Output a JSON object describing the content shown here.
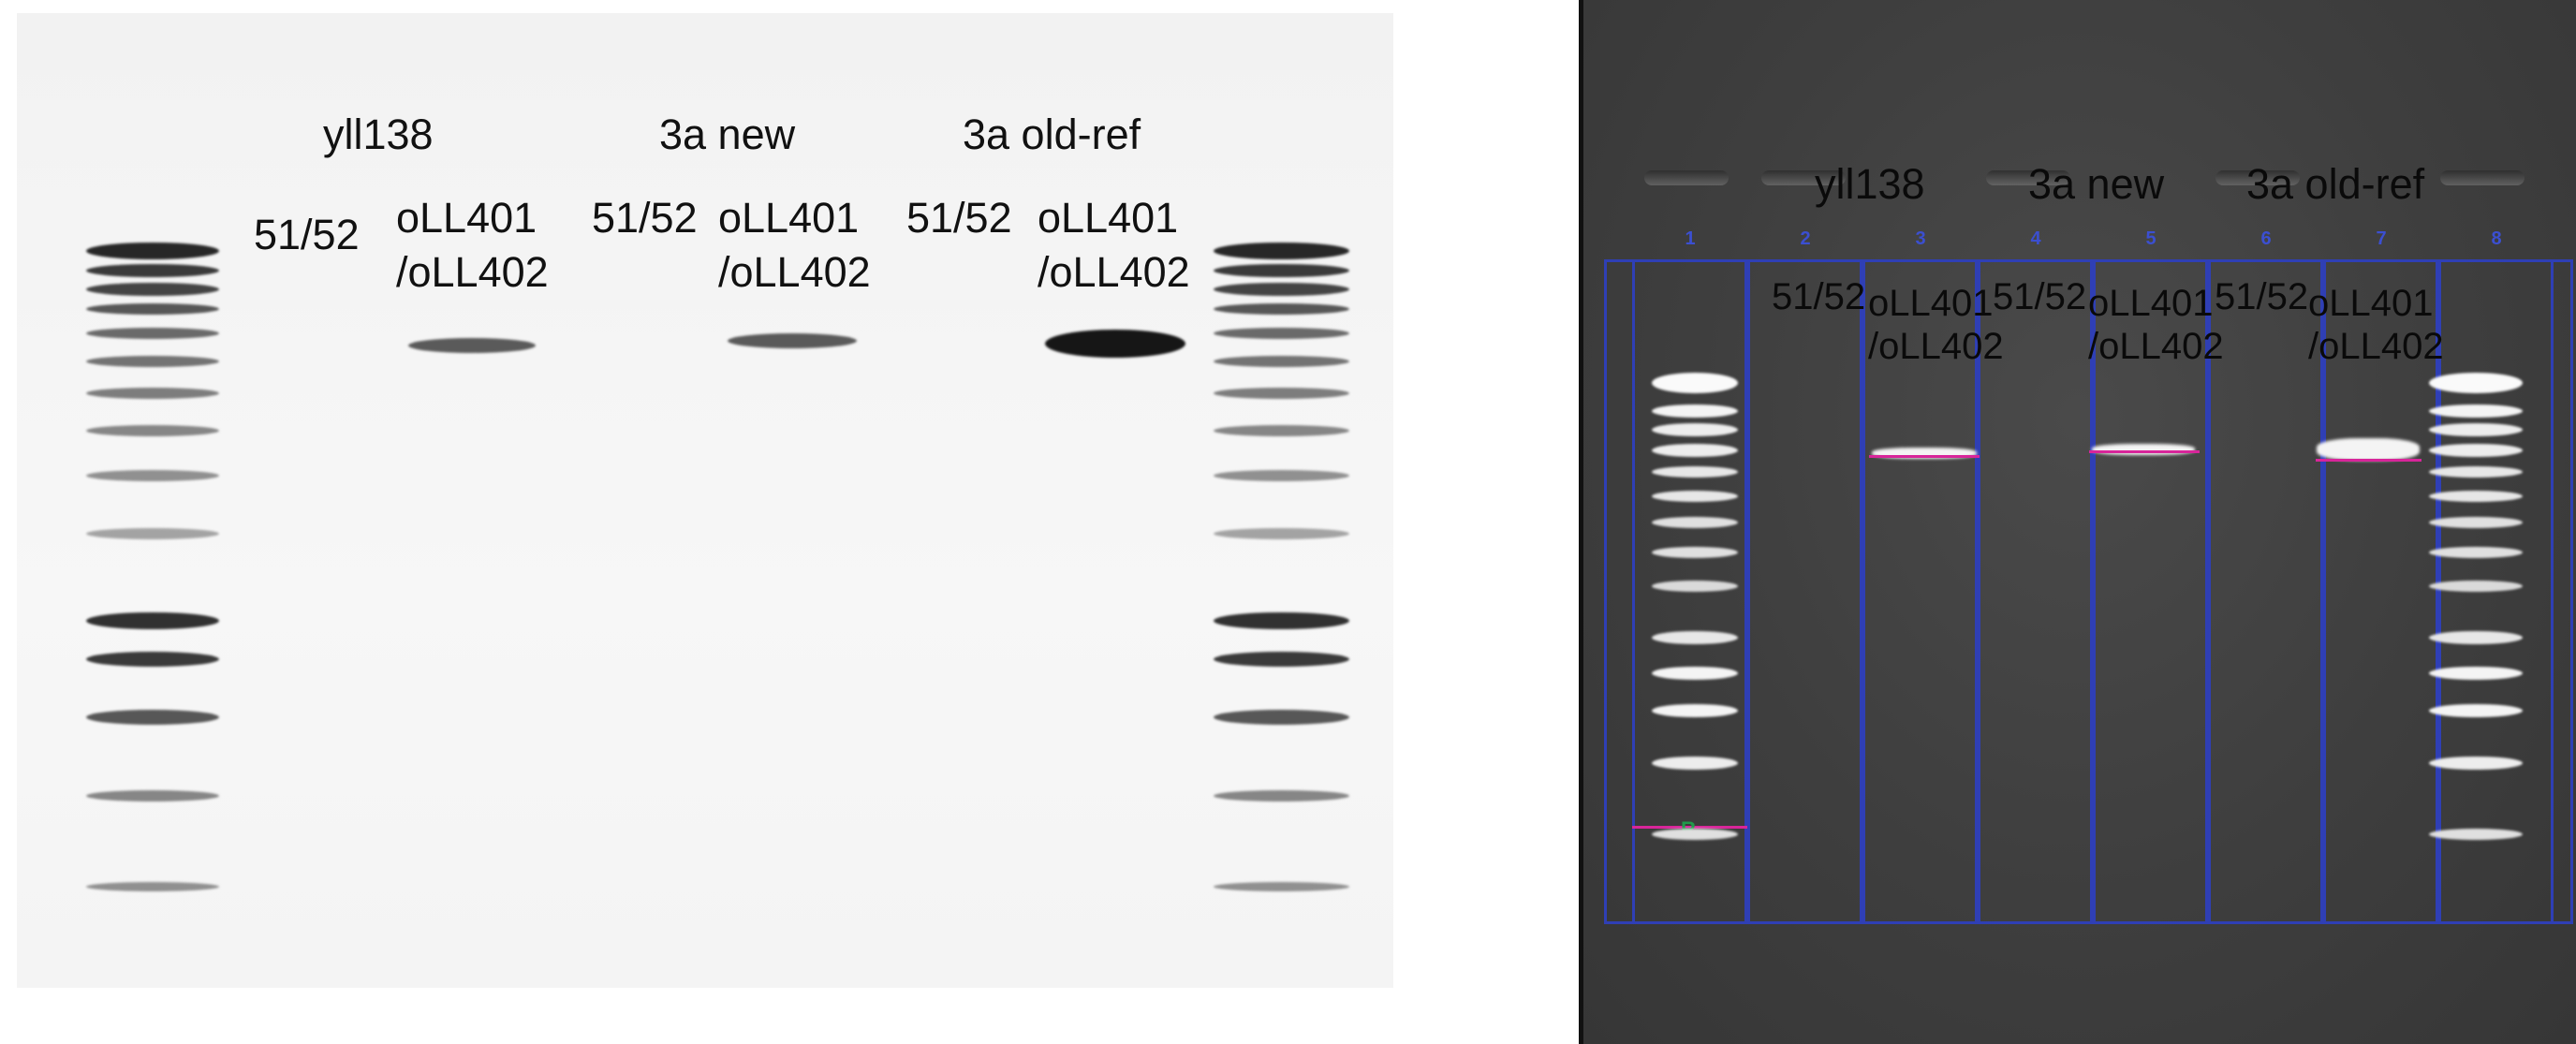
{
  "left_gel": {
    "group_labels": [
      "yll138",
      "3a new",
      "3a old-ref"
    ],
    "primer_short": [
      "51/52",
      "51/52",
      "51/52"
    ],
    "primer_long_line1": [
      "oLL401",
      "oLL401",
      "oLL401"
    ],
    "primer_long_line2": [
      "/oLL402",
      "/oLL402",
      "/oLL402"
    ]
  },
  "right_gel": {
    "group_labels": [
      "yll138",
      "3a new",
      "3a old-ref"
    ],
    "lane_numbers": [
      "1",
      "2",
      "3",
      "4",
      "5",
      "6",
      "7",
      "8"
    ],
    "primer_short": [
      "51/52",
      "51/52",
      "51/52"
    ],
    "primer_long_line1": [
      "oLL401",
      "oLL401",
      "oLL401"
    ],
    "primer_long_line2": [
      "/oLL402",
      "/oLL402",
      "/oLL402"
    ],
    "reference_marker": "R"
  },
  "colors": {
    "lane_box": "#2f3fb5",
    "lane_number": "#3b4fd1",
    "band_marker": "#d8259a",
    "reference_marker": "#1f9a4a"
  }
}
